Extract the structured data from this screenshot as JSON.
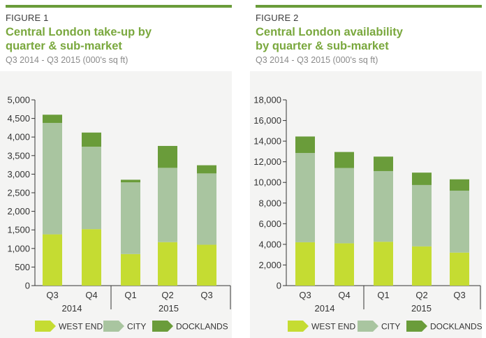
{
  "figures": [
    {
      "label": "FIGURE 1",
      "title_line1": "Central London take-up by",
      "title_line2": "quarter & sub-market",
      "subtitle": "Q3 2014 - Q3 2015 (000's sq ft)"
    },
    {
      "label": "FIGURE 2",
      "title_line1": "Central London availability",
      "title_line2": "by quarter & sub-market",
      "subtitle": "Q3 2014 - Q3 2015 (000's sq ft)"
    }
  ],
  "colors": {
    "west_end": "#c5dc32",
    "city": "#a9c5a0",
    "docklands": "#6a9c3a",
    "accent": "#6a9c3a",
    "title": "#7aa83e"
  },
  "chart_data": [
    {
      "type": "bar",
      "stacked": true,
      "title": "Central London take-up by quarter & sub-market",
      "subtitle": "Q3 2014 - Q3 2015 (000's sq ft)",
      "categories": [
        "Q3",
        "Q4",
        "Q1",
        "Q2",
        "Q3"
      ],
      "year_groups": [
        {
          "label": "2014",
          "categories": [
            "Q3",
            "Q4"
          ]
        },
        {
          "label": "2015",
          "categories": [
            "Q1",
            "Q2",
            "Q3"
          ]
        }
      ],
      "series": [
        {
          "name": "WEST END",
          "values": [
            1380,
            1520,
            850,
            1170,
            1100
          ]
        },
        {
          "name": "CITY",
          "values": [
            3000,
            2220,
            1930,
            2000,
            1920
          ]
        },
        {
          "name": "DOCKLANDS",
          "values": [
            220,
            380,
            70,
            590,
            220
          ]
        }
      ],
      "ylim": [
        0,
        5000
      ],
      "yticks": [
        0,
        500,
        1000,
        1500,
        2000,
        2500,
        3000,
        3500,
        4000,
        4500,
        5000
      ],
      "ytick_labels": [
        "0",
        "500",
        "1,000",
        "1,500",
        "2,000",
        "2,500",
        "3,000",
        "3,500",
        "4,000",
        "4,500",
        "5,000"
      ],
      "legend": "bottom"
    },
    {
      "type": "bar",
      "stacked": true,
      "title": "Central London availability by quarter & sub-market",
      "subtitle": "Q3 2014 - Q3 2015 (000's sq ft)",
      "categories": [
        "Q3",
        "Q4",
        "Q1",
        "Q2",
        "Q3"
      ],
      "year_groups": [
        {
          "label": "2014",
          "categories": [
            "Q3",
            "Q4"
          ]
        },
        {
          "label": "2015",
          "categories": [
            "Q1",
            "Q2",
            "Q3"
          ]
        }
      ],
      "series": [
        {
          "name": "WEST END",
          "values": [
            4200,
            4100,
            4250,
            3800,
            3200
          ]
        },
        {
          "name": "CITY",
          "values": [
            8650,
            7300,
            6850,
            5950,
            6000
          ]
        },
        {
          "name": "DOCKLANDS",
          "values": [
            1600,
            1550,
            1400,
            1200,
            1100
          ]
        }
      ],
      "ylim": [
        0,
        18000
      ],
      "yticks": [
        0,
        2000,
        4000,
        6000,
        8000,
        10000,
        12000,
        14000,
        16000,
        18000
      ],
      "ytick_labels": [
        "0",
        "2,000",
        "4,000",
        "6,000",
        "8,000",
        "10,000",
        "12,000",
        "14,000",
        "16,000",
        "18,000"
      ],
      "legend": "bottom"
    }
  ]
}
